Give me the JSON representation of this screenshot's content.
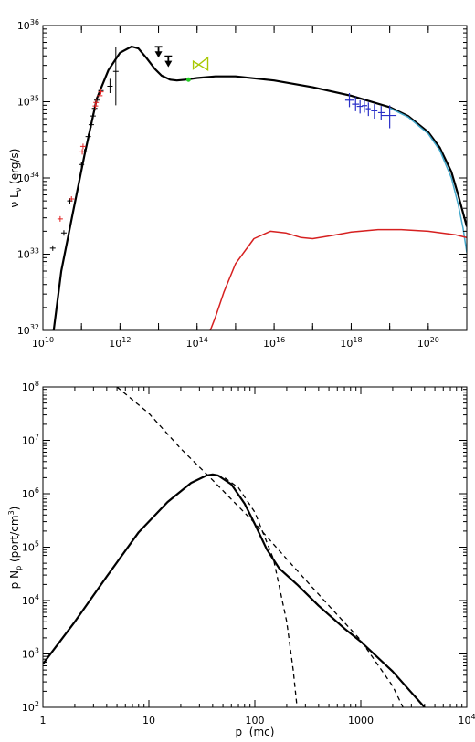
{
  "chart_data": [
    {
      "type": "line",
      "xscale": "log",
      "yscale": "log",
      "xlim": [
        10000000000.0,
        1e+21
      ],
      "ylim": [
        1e+32,
        1e+36
      ],
      "xlabel": "",
      "ylabel": "ν L_ν (erg/s)",
      "ylabel_parts": {
        "nu": "ν",
        "L": "L",
        "sub": "ν",
        "unit": "(erg/s)"
      },
      "xticks": [
        {
          "v": 10000000000.0,
          "base": "10",
          "exp": "10"
        },
        {
          "v": 1000000000000.0,
          "base": "10",
          "exp": "12"
        },
        {
          "v": 100000000000000.0,
          "base": "10",
          "exp": "14"
        },
        {
          "v": 1e+16,
          "base": "10",
          "exp": "16"
        },
        {
          "v": 1e+18,
          "base": "10",
          "exp": "18"
        },
        {
          "v": 1e+20,
          "base": "10",
          "exp": "20"
        }
      ],
      "yticks": [
        {
          "v": 1e+32,
          "base": "10",
          "exp": "32"
        },
        {
          "v": 1e+33,
          "base": "10",
          "exp": "33"
        },
        {
          "v": 1e+34,
          "base": "10",
          "exp": "34"
        },
        {
          "v": 1e+35,
          "base": "10",
          "exp": "35"
        },
        {
          "v": 1e+36,
          "base": "10",
          "exp": "36"
        }
      ],
      "series": [
        {
          "color": "#000000",
          "width": 2.2,
          "points": [
            [
              19000000000.0,
              1e+32
            ],
            [
              30000000000.0,
              6e+32
            ],
            [
              60000000000.0,
              3.5e+33
            ],
            [
              120000000000.0,
              2e+34
            ],
            [
              250000000000.0,
              1.1e+35
            ],
            [
              500000000000.0,
              2.6e+35
            ],
            [
              1000000000000.0,
              4.4e+35
            ],
            [
              2000000000000.0,
              5.3e+35
            ],
            [
              3000000000000.0,
              5e+35
            ],
            [
              5000000000000.0,
              3.7e+35
            ],
            [
              8000000000000.0,
              2.7e+35
            ],
            [
              12000000000000.0,
              2.2e+35
            ],
            [
              20000000000000.0,
              1.95e+35
            ],
            [
              30000000000000.0,
              1.9e+35
            ],
            [
              50000000000000.0,
              1.95e+35
            ],
            [
              100000000000000.0,
              2.05e+35
            ],
            [
              300000000000000.0,
              2.15e+35
            ],
            [
              1000000000000000.0,
              2.15e+35
            ],
            [
              1e+16,
              1.9e+35
            ],
            [
              1e+17,
              1.55e+35
            ],
            [
              1e+18,
              1.2e+35
            ],
            [
              1e+19,
              8.5e+34
            ],
            [
              3e+19,
              6.5e+34
            ],
            [
              1e+20,
              4e+34
            ],
            [
              2e+20,
              2.5e+34
            ],
            [
              4e+20,
              1.2e+34
            ],
            [
              6e+20,
              6e+33
            ],
            [
              8e+20,
              3.5e+33
            ],
            [
              1e+21,
              2.3e+33
            ]
          ]
        },
        {
          "color": "#45a9cc",
          "width": 1.5,
          "points": [
            [
              1e+19,
              8.3e+34
            ],
            [
              3e+19,
              6.3e+34
            ],
            [
              1e+20,
              3.8e+34
            ],
            [
              2e+20,
              2.3e+34
            ],
            [
              4e+20,
              1e+34
            ],
            [
              6e+20,
              4.5e+33
            ],
            [
              8e+20,
              2.2e+33
            ],
            [
              1e+21,
              1.05e+33
            ]
          ]
        },
        {
          "color": "#d62020",
          "width": 1.5,
          "points": [
            [
              220000000000000.0,
              1e+32
            ],
            [
              300000000000000.0,
              1.5e+32
            ],
            [
              500000000000000.0,
              3.2e+32
            ],
            [
              1000000000000000.0,
              7.5e+32
            ],
            [
              3000000000000000.0,
              1.6e+33
            ],
            [
              8000000000000000.0,
              2e+33
            ],
            [
              2e+16,
              1.9e+33
            ],
            [
              5e+16,
              1.65e+33
            ],
            [
              1e+17,
              1.6e+33
            ],
            [
              3e+17,
              1.75e+33
            ],
            [
              1e+18,
              1.95e+33
            ],
            [
              5e+18,
              2.1e+33
            ],
            [
              2e+19,
              2.1e+33
            ],
            [
              1e+20,
              2e+33
            ],
            [
              5e+20,
              1.8e+33
            ],
            [
              1e+21,
              1.65e+33
            ]
          ]
        }
      ],
      "points_black": [
        [
          18000000000.0,
          1.2e+33
        ],
        [
          35000000000.0,
          1.9e+33
        ],
        [
          50000000000.0,
          5e+33
        ],
        [
          100000000000.0,
          1.5e+34
        ],
        [
          120000000000.0,
          2.2e+34
        ],
        [
          150000000000.0,
          3.5e+34
        ],
        [
          180000000000.0,
          5e+34
        ],
        [
          200000000000.0,
          6.5e+34
        ],
        [
          220000000000.0,
          8.2e+34
        ],
        [
          250000000000.0,
          1.05e+35
        ],
        [
          320000000000.0,
          1.4e+35
        ]
      ],
      "points_red": [
        [
          28000000000.0,
          2.9e+33
        ],
        [
          55000000000.0,
          5.3e+33
        ],
        [
          105000000000.0,
          2.2e+34
        ],
        [
          110000000000.0,
          2.6e+34
        ],
        [
          230000000000.0,
          8.8e+34
        ],
        [
          240000000000.0,
          9.8e+34
        ],
        [
          300000000000.0,
          1.2e+35
        ],
        [
          320000000000.0,
          1.35e+35
        ]
      ],
      "errorbars_black": [
        {
          "x": 780000000000.0,
          "y": 2.5e+35,
          "ylo": 9e+34,
          "yhi": 5.2e+35
        },
        {
          "x": 550000000000.0,
          "y": 1.6e+35,
          "ylo": 1.3e+35,
          "yhi": 2e+35
        }
      ],
      "upper_limits": [
        {
          "x": 10000000000000.0,
          "y": 1.1e+36
        },
        {
          "x": 10000000000000.0,
          "y": 4e+35
        },
        {
          "x": 18000000000000.0,
          "y": 3e+35
        }
      ],
      "green_point": {
        "x": 60000000000000.0,
        "y": 1.95e+35
      },
      "green_bowtie": [
        [
          80000000000000.0,
          2.7e+35
        ],
        [
          190000000000000.0,
          3.8e+35
        ],
        [
          190000000000000.0,
          2.6e+35
        ],
        [
          80000000000000.0,
          3.4e+35
        ]
      ],
      "errorbars_blue": [
        {
          "x": 9e+17,
          "y": 1.05e+35,
          "xlo": 7e+17,
          "xhi": 1.15e+18,
          "ylo": 8.5e+34,
          "yhi": 1.3e+35
        },
        {
          "x": 1.3e+18,
          "y": 9.3e+34,
          "xlo": 1.05e+18,
          "xhi": 1.6e+18,
          "ylo": 7.5e+34,
          "yhi": 1.15e+35
        },
        {
          "x": 1.7e+18,
          "y": 8.7e+34,
          "xlo": 1.4e+18,
          "xhi": 2e+18,
          "ylo": 7e+34,
          "yhi": 1.05e+35
        },
        {
          "x": 2.2e+18,
          "y": 8.9e+34,
          "xlo": 1.9e+18,
          "xhi": 2.6e+18,
          "ylo": 7.2e+34,
          "yhi": 1.08e+35
        },
        {
          "x": 2.8e+18,
          "y": 8.1e+34,
          "xlo": 2.4e+18,
          "xhi": 3.2e+18,
          "ylo": 6.5e+34,
          "yhi": 9.8e+34
        },
        {
          "x": 4e+18,
          "y": 7.6e+34,
          "xlo": 3.3e+18,
          "xhi": 4.8e+18,
          "ylo": 6e+34,
          "yhi": 9.3e+34
        },
        {
          "x": 6e+18,
          "y": 7.2e+34,
          "xlo": 5e+18,
          "xhi": 7.5e+18,
          "ylo": 5.8e+34,
          "yhi": 8.8e+34
        },
        {
          "x": 1e+19,
          "y": 6.6e+34,
          "xlo": 6e+18,
          "xhi": 1.5e+19,
          "ylo": 4.5e+34,
          "yhi": 9e+34
        }
      ]
    },
    {
      "type": "line",
      "xscale": "log",
      "yscale": "log",
      "xlim": [
        1,
        10000.0
      ],
      "ylim": [
        100.0,
        100000000.0
      ],
      "xlabel": "p  (mc)",
      "ylabel": "p N_p (port/cm³)",
      "ylabel_parts": {
        "p": "p",
        "N": "N",
        "sub": "p",
        "unit": "(port/cm",
        "sup": "3",
        "close": ")"
      },
      "xticks": [
        {
          "v": 1,
          "text": "1"
        },
        {
          "v": 10,
          "text": "10"
        },
        {
          "v": 100,
          "text": "100"
        },
        {
          "v": 1000,
          "text": "1000"
        },
        {
          "v": 10000,
          "base": "10",
          "exp": "4"
        }
      ],
      "yticks": [
        {
          "v": 100.0,
          "base": "10",
          "exp": "2"
        },
        {
          "v": 1000.0,
          "base": "10",
          "exp": "3"
        },
        {
          "v": 10000.0,
          "base": "10",
          "exp": "4"
        },
        {
          "v": 100000.0,
          "base": "10",
          "exp": "5"
        },
        {
          "v": 1000000.0,
          "base": "10",
          "exp": "6"
        },
        {
          "v": 10000000.0,
          "base": "10",
          "exp": "7"
        },
        {
          "v": 100000000.0,
          "base": "10",
          "exp": "8"
        }
      ],
      "series": [
        {
          "color": "#000000",
          "width": 2.2,
          "dash": "",
          "points": [
            [
              1,
              650.0
            ],
            [
              2,
              4000.0
            ],
            [
              4,
              28000.0
            ],
            [
              8,
              190000.0
            ],
            [
              15,
              700000.0
            ],
            [
              25,
              1600000.0
            ],
            [
              35,
              2200000.0
            ],
            [
              40,
              2300000.0
            ],
            [
              45,
              2200000.0
            ],
            [
              60,
              1500000.0
            ],
            [
              80,
              650000.0
            ],
            [
              100,
              270000.0
            ],
            [
              130,
              90000.0
            ],
            [
              170,
              40000.0
            ],
            [
              250,
              20000.0
            ],
            [
              400,
              8000.0
            ],
            [
              700,
              3000.0
            ],
            [
              1000,
              1700.0
            ],
            [
              2000,
              470.0
            ],
            [
              3000,
              190.0
            ],
            [
              4000,
              100.0
            ]
          ]
        },
        {
          "color": "#000000",
          "width": 1.3,
          "dash": "5,4",
          "points": [
            [
              1,
              650.0
            ],
            [
              2,
              4000.0
            ],
            [
              4,
              28000.0
            ],
            [
              8,
              190000.0
            ],
            [
              15,
              700000.0
            ],
            [
              25,
              1600000.0
            ],
            [
              35,
              2200000.0
            ],
            [
              40,
              2300000.0
            ],
            [
              50,
              2100000.0
            ],
            [
              70,
              1300000.0
            ],
            [
              100,
              450000.0
            ],
            [
              150,
              60000.0
            ],
            [
              200,
              4000.0
            ],
            [
              230,
              500.0
            ],
            [
              250,
              100.0
            ]
          ]
        },
        {
          "color": "#000000",
          "width": 1.3,
          "dash": "5,4",
          "points": [
            [
              5,
              100000000.0
            ],
            [
              10,
              32000000.0
            ],
            [
              20,
              7000000.0
            ],
            [
              40,
              1800000.0
            ],
            [
              100,
              280000.0
            ],
            [
              200,
              60000.0
            ],
            [
              500,
              8000.0
            ],
            [
              1000,
              1800.0
            ],
            [
              2000,
              250.0
            ],
            [
              2500,
              100.0
            ]
          ]
        }
      ]
    }
  ]
}
